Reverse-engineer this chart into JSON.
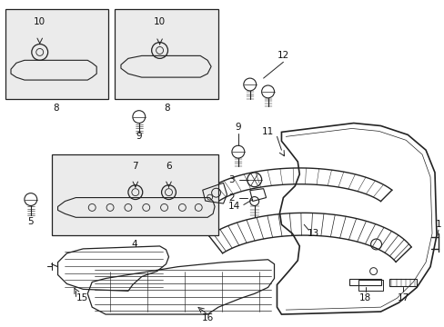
{
  "background_color": "#ffffff",
  "fig_width": 4.89,
  "fig_height": 3.6,
  "dpi": 100,
  "line_color": "#222222",
  "label_fontsize": 7.5,
  "box_fill": "#ebebeb"
}
